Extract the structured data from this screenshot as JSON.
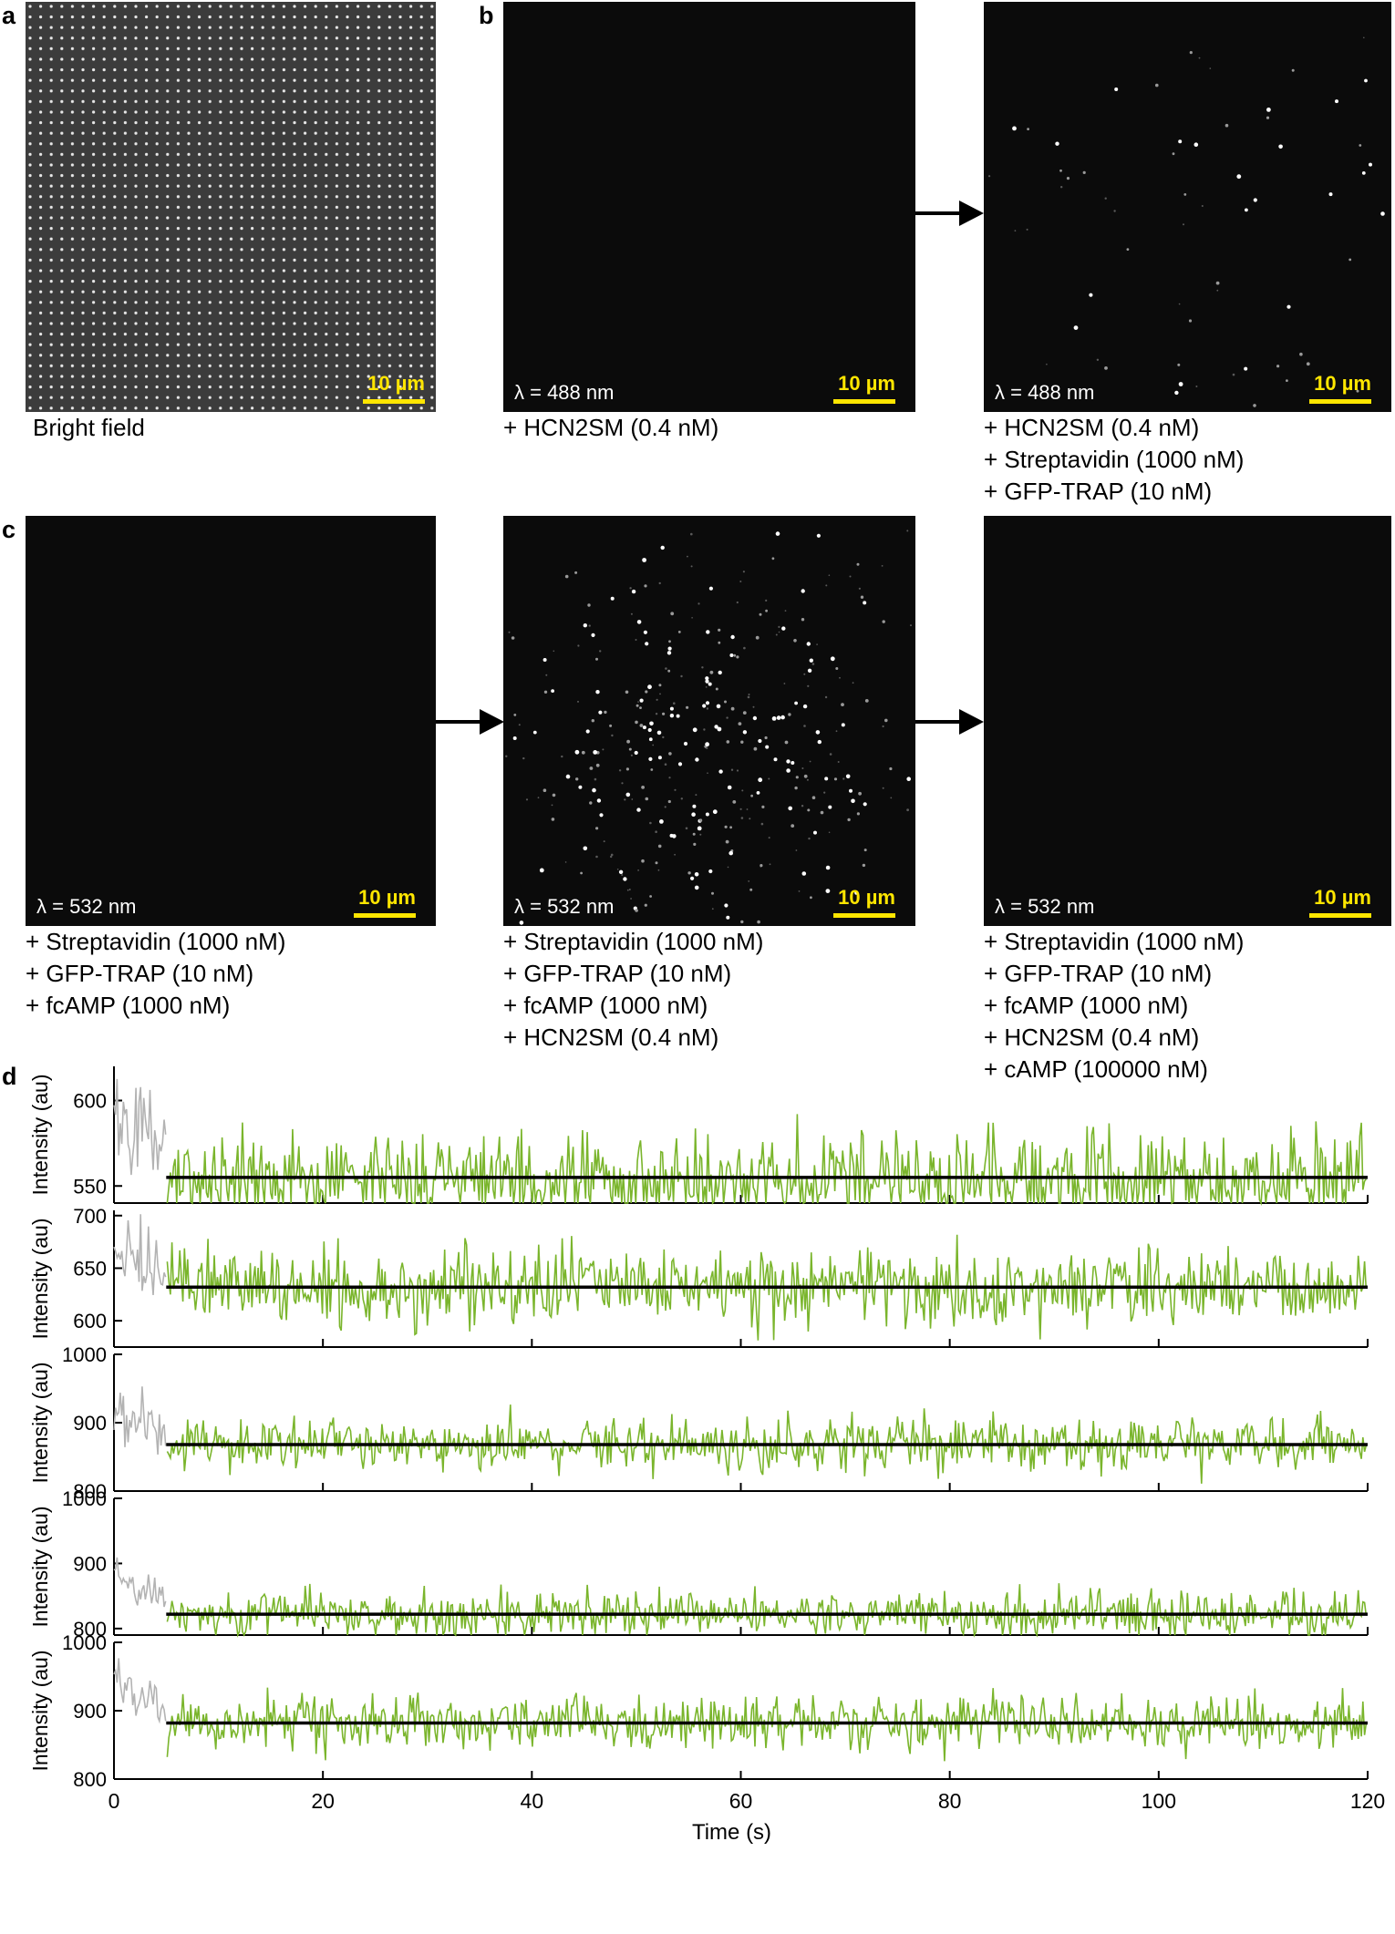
{
  "panel_labels": {
    "a": "a",
    "b": "b",
    "c": "c",
    "d": "d"
  },
  "scale_bar": "10 µm",
  "panels": {
    "a": {
      "caption": [
        "Bright field"
      ]
    },
    "b1": {
      "lambda": "λ = 488 nm",
      "caption": [
        "+ HCN2SM (0.4 nM)"
      ]
    },
    "b2": {
      "lambda": "λ = 488 nm",
      "caption": [
        "+ HCN2SM (0.4 nM)",
        "+ Streptavidin (1000 nM)",
        "+ GFP-TRAP (10 nM)"
      ]
    },
    "c1": {
      "lambda": "λ = 532 nm",
      "caption": [
        "+ Streptavidin (1000 nM)",
        "+ GFP-TRAP (10 nM)",
        "+ fcAMP (1000 nM)"
      ]
    },
    "c2": {
      "lambda": "λ = 532 nm",
      "caption": [
        "+ Streptavidin (1000 nM)",
        "+ GFP-TRAP (10 nM)",
        "+ fcAMP (1000 nM)",
        "+ HCN2SM (0.4 nM)"
      ]
    },
    "c3": {
      "lambda": "λ = 532 nm",
      "caption": [
        "+ Streptavidin (1000 nM)",
        "+ GFP-TRAP (10 nM)",
        "+ fcAMP (1000 nM)",
        "+ HCN2SM (0.4 nM)",
        "+ cAMP (100000 nM)"
      ]
    }
  },
  "chart_data": {
    "type": "line",
    "xlabel": "Time (s)",
    "xlim": [
      0,
      120
    ],
    "xticks": [
      0,
      20,
      40,
      60,
      80,
      100,
      120
    ],
    "ylabel": "Intensity (au)",
    "colors": {
      "early": "#b3b3b3",
      "trace": "#7ab52c",
      "mean": "#000000"
    },
    "transition_time": 5,
    "traces": [
      {
        "ylim": [
          540,
          620
        ],
        "yticks": [
          550,
          600
        ],
        "mean": 555,
        "noise_sd": 14,
        "early_mean": 595
      },
      {
        "ylim": [
          575,
          705
        ],
        "yticks": [
          600,
          650,
          700
        ],
        "mean": 632,
        "noise_sd": 18,
        "early_mean": 665
      },
      {
        "ylim": [
          800,
          1000
        ],
        "yticks": [
          800,
          900,
          1000
        ],
        "mean": 868,
        "noise_sd": 20,
        "early_mean": 915
      },
      {
        "ylim": [
          790,
          1000
        ],
        "yticks": [
          800,
          900,
          1000
        ],
        "mean": 822,
        "noise_sd": 18,
        "early_mean": 880
      },
      {
        "ylim": [
          800,
          1000
        ],
        "yticks": [
          800,
          900,
          1000
        ],
        "mean": 882,
        "noise_sd": 20,
        "early_mean": 940
      }
    ]
  }
}
